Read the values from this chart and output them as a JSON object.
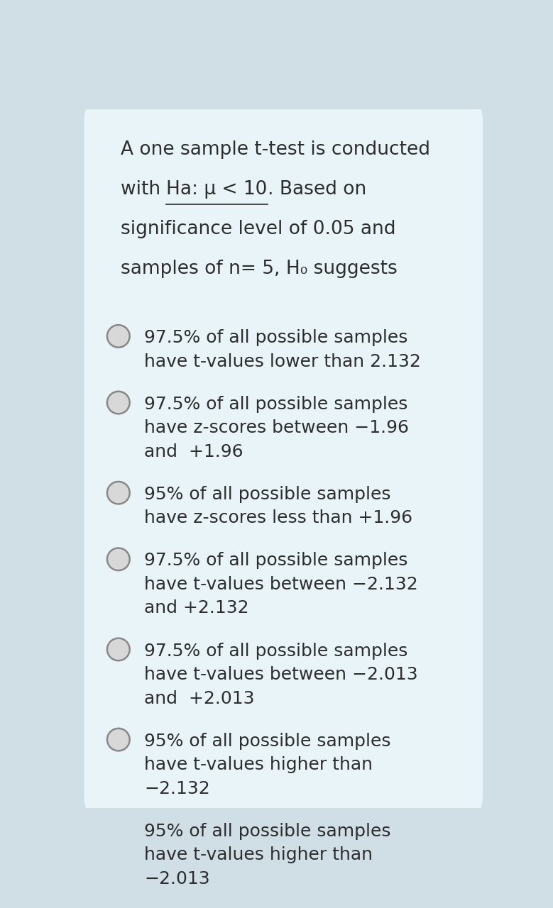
{
  "bg_outer": "#d0dfe6",
  "card_bg": "#e8f4f8",
  "text_color": "#2d2d2d",
  "title_lines": [
    "A one sample t-test is conducted",
    "with Ha: μ < 10. Based on",
    "significance level of 0.05 and",
    "samples of n= 5, H₀ suggests"
  ],
  "options": [
    "97.5% of all possible samples\nhave t-values lower than 2.132",
    "97.5% of all possible samples\nhave z-scores between −1.96\nand  +1.96",
    "95% of all possible samples\nhave z-scores less than +1.96",
    "97.5% of all possible samples\nhave t-values between −2.132\nand +2.132",
    "97.5% of all possible samples\nhave t-values between −2.013\nand  +2.013",
    "95% of all possible samples\nhave t-values higher than\n−2.132",
    "95% of all possible samples\nhave t-values higher than\n−2.013"
  ],
  "font_size_title": 19,
  "font_size_options": 18,
  "circle_color": "#888888",
  "circle_fill": "#d8d8d8"
}
